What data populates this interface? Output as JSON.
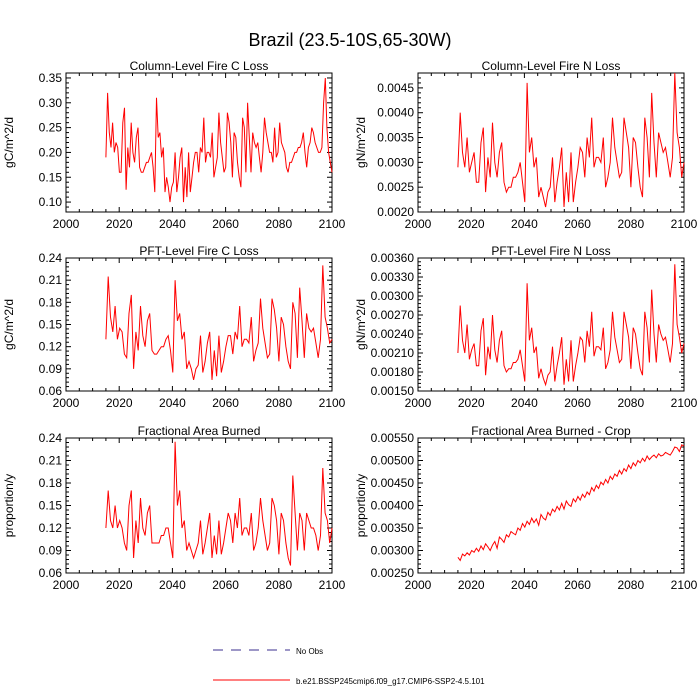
{
  "figure": {
    "title": "Brazil (23.5-10S,65-30W)"
  },
  "legend": {
    "obs_label": "No Obs",
    "model_label": "b.e21.BSSP245cmip6.f09_g17.CMIP6-SSP2-4.5.101",
    "obs_color": "#3b2f8f",
    "model_color": "#ff0000"
  },
  "chart_data": [
    {
      "type": "line",
      "title": "Column-Level Fire C Loss",
      "ylabel": "gC/m^2/d",
      "xlabel": "",
      "xlim": [
        2000,
        2100
      ],
      "ylim": [
        0.08,
        0.36
      ],
      "xticks": [
        "2000",
        "2020",
        "2040",
        "2060",
        "2080",
        "2100"
      ],
      "yticks": [
        "0.10",
        "0.15",
        "0.20",
        "0.25",
        "0.30",
        "0.35"
      ],
      "series": [
        {
          "name": "b.e21.BSSP245cmip6.f09_g17.CMIP6-SSP2-4.5.101",
          "start_year": 2015,
          "values": [
            0.19,
            0.32,
            0.24,
            0.21,
            0.26,
            0.2,
            0.22,
            0.21,
            0.16,
            0.16,
            0.26,
            0.29,
            0.125,
            0.21,
            0.17,
            0.26,
            0.2,
            0.18,
            0.23,
            0.25,
            0.17,
            0.16,
            0.16,
            0.17,
            0.18,
            0.18,
            0.19,
            0.2,
            0.17,
            0.12,
            0.31,
            0.23,
            0.24,
            0.19,
            0.21,
            0.12,
            0.15,
            0.13,
            0.1,
            0.13,
            0.14,
            0.2,
            0.12,
            0.15,
            0.19,
            0.21,
            0.1,
            0.17,
            0.11,
            0.2,
            0.12,
            0.15,
            0.18,
            0.2,
            0.2,
            0.16,
            0.21,
            0.2,
            0.27,
            0.18,
            0.2,
            0.2,
            0.19,
            0.24,
            0.15,
            0.17,
            0.19,
            0.28,
            0.22,
            0.19,
            0.16,
            0.17,
            0.28,
            0.26,
            0.22,
            0.15,
            0.24,
            0.23,
            0.18,
            0.15,
            0.13,
            0.27,
            0.25,
            0.16,
            0.3,
            0.23,
            0.16,
            0.24,
            0.22,
            0.21,
            0.22,
            0.19,
            0.16,
            0.2,
            0.27,
            0.24,
            0.22,
            0.2,
            0.2,
            0.18,
            0.25,
            0.19,
            0.2,
            0.26,
            0.22,
            0.21,
            0.2,
            0.17,
            0.16,
            0.18,
            0.18,
            0.19,
            0.2,
            0.2,
            0.21,
            0.21,
            0.22,
            0.24,
            0.2,
            0.17,
            0.21,
            0.22,
            0.25,
            0.24,
            0.22,
            0.21,
            0.2,
            0.2,
            0.21,
            0.3,
            0.35,
            0.25,
            0.2,
            0.18,
            0.16
          ]
        }
      ]
    },
    {
      "type": "line",
      "title": "Column-Level Fire N Loss",
      "ylabel": "gN/m^2/d",
      "xlabel": "",
      "xlim": [
        2000,
        2100
      ],
      "ylim": [
        0.002,
        0.0048
      ],
      "xticks": [
        "2000",
        "2020",
        "2040",
        "2060",
        "2080",
        "2100"
      ],
      "yticks": [
        "0.0020",
        "0.0025",
        "0.0030",
        "0.0035",
        "0.0040",
        "0.0045"
      ],
      "series": [
        {
          "name": "b.e21.BSSP245cmip6.f09_g17.CMIP6-SSP2-4.5.101",
          "start_year": 2015,
          "values": [
            0.0029,
            0.004,
            0.0032,
            0.0029,
            0.0035,
            0.0028,
            0.003,
            0.0032,
            0.0026,
            0.0026,
            0.0034,
            0.0037,
            0.0024,
            0.0031,
            0.0027,
            0.0038,
            0.003,
            0.0027,
            0.0032,
            0.0034,
            0.0026,
            0.0024,
            0.0025,
            0.0025,
            0.0027,
            0.0027,
            0.0028,
            0.003,
            0.0026,
            0.0022,
            0.0046,
            0.0032,
            0.0035,
            0.0029,
            0.0031,
            0.0023,
            0.0025,
            0.0023,
            0.0021,
            0.0024,
            0.0025,
            0.0031,
            0.0022,
            0.0026,
            0.0029,
            0.0033,
            0.0021,
            0.0028,
            0.0022,
            0.0032,
            0.0022,
            0.0026,
            0.0029,
            0.0033,
            0.0032,
            0.0027,
            0.0035,
            0.0031,
            0.0039,
            0.0029,
            0.0031,
            0.0031,
            0.003,
            0.0035,
            0.0025,
            0.0027,
            0.003,
            0.0039,
            0.0033,
            0.003,
            0.0027,
            0.0028,
            0.0039,
            0.0036,
            0.0033,
            0.0025,
            0.0035,
            0.0034,
            0.0029,
            0.0025,
            0.0023,
            0.0039,
            0.0035,
            0.0027,
            0.0044,
            0.0034,
            0.0027,
            0.0036,
            0.0034,
            0.0032,
            0.0033,
            0.003,
            0.0027,
            0.0031,
            0.0048,
            0.0036,
            0.0033,
            0.0027,
            0.003
          ]
        }
      ]
    },
    {
      "type": "line",
      "title": "PFT-Level Fire C Loss",
      "ylabel": "gC/m^2/d",
      "xlabel": "",
      "xlim": [
        2000,
        2100
      ],
      "ylim": [
        0.06,
        0.24
      ],
      "xticks": [
        "2000",
        "2020",
        "2040",
        "2060",
        "2080",
        "2100"
      ],
      "yticks": [
        "0.06",
        "0.09",
        "0.12",
        "0.15",
        "0.18",
        "0.21",
        "0.24"
      ],
      "series": [
        {
          "name": "b.e21.BSSP245cmip6.f09_g17.CMIP6-SSP2-4.5.101",
          "start_year": 2015,
          "values": [
            0.13,
            0.215,
            0.16,
            0.14,
            0.175,
            0.13,
            0.145,
            0.14,
            0.11,
            0.105,
            0.165,
            0.19,
            0.09,
            0.14,
            0.115,
            0.175,
            0.135,
            0.12,
            0.155,
            0.165,
            0.115,
            0.11,
            0.11,
            0.115,
            0.12,
            0.12,
            0.13,
            0.135,
            0.115,
            0.085,
            0.21,
            0.155,
            0.165,
            0.13,
            0.14,
            0.09,
            0.1,
            0.09,
            0.075,
            0.09,
            0.095,
            0.135,
            0.085,
            0.1,
            0.125,
            0.14,
            0.075,
            0.115,
            0.08,
            0.135,
            0.085,
            0.1,
            0.12,
            0.135,
            0.135,
            0.11,
            0.14,
            0.13,
            0.175,
            0.12,
            0.13,
            0.13,
            0.125,
            0.16,
            0.1,
            0.115,
            0.125,
            0.185,
            0.145,
            0.125,
            0.105,
            0.11,
            0.185,
            0.17,
            0.145,
            0.1,
            0.16,
            0.15,
            0.12,
            0.1,
            0.09,
            0.18,
            0.165,
            0.105,
            0.2,
            0.155,
            0.105,
            0.165,
            0.145,
            0.14,
            0.145,
            0.125,
            0.105,
            0.13,
            0.23,
            0.16,
            0.145,
            0.125,
            0.13
          ]
        }
      ]
    },
    {
      "type": "line",
      "title": "PFT-Level Fire N Loss",
      "ylabel": "gN/m^2/d",
      "xlabel": "",
      "xlim": [
        2000,
        2100
      ],
      "ylim": [
        0.0015,
        0.0036
      ],
      "xticks": [
        "2000",
        "2020",
        "2040",
        "2060",
        "2080",
        "2100"
      ],
      "yticks": [
        "0.00150",
        "0.00180",
        "0.00210",
        "0.00240",
        "0.00270",
        "0.00300",
        "0.00330",
        "0.00360"
      ],
      "series": [
        {
          "name": "b.e21.BSSP245cmip6.f09_g17.CMIP6-SSP2-4.5.101",
          "start_year": 2015,
          "values": [
            0.0021,
            0.00285,
            0.0023,
            0.0021,
            0.00255,
            0.002,
            0.00215,
            0.00225,
            0.0019,
            0.0019,
            0.00245,
            0.00265,
            0.00175,
            0.0022,
            0.002,
            0.0027,
            0.00215,
            0.00195,
            0.0023,
            0.00245,
            0.0019,
            0.0018,
            0.00185,
            0.00185,
            0.00195,
            0.00195,
            0.002,
            0.00215,
            0.0019,
            0.00165,
            0.0032,
            0.0023,
            0.0025,
            0.0021,
            0.0022,
            0.0017,
            0.00185,
            0.0017,
            0.0016,
            0.00175,
            0.0018,
            0.0022,
            0.00165,
            0.0019,
            0.0021,
            0.00235,
            0.0016,
            0.002,
            0.00165,
            0.0023,
            0.00165,
            0.0019,
            0.0021,
            0.00235,
            0.0023,
            0.00195,
            0.00245,
            0.0022,
            0.00275,
            0.00205,
            0.0022,
            0.0022,
            0.00215,
            0.0025,
            0.00185,
            0.00195,
            0.00215,
            0.00275,
            0.00235,
            0.00215,
            0.00195,
            0.002,
            0.00275,
            0.00255,
            0.00235,
            0.00185,
            0.0025,
            0.0024,
            0.0021,
            0.00185,
            0.00175,
            0.00275,
            0.0025,
            0.00195,
            0.0031,
            0.0024,
            0.00195,
            0.00255,
            0.0024,
            0.0023,
            0.00235,
            0.00215,
            0.00195,
            0.00225,
            0.0035,
            0.00255,
            0.00235,
            0.0021,
            0.00225
          ]
        }
      ]
    },
    {
      "type": "line",
      "title": "Fractional Area Burned",
      "ylabel": "proportion/y",
      "xlabel": "",
      "xlim": [
        2000,
        2100
      ],
      "ylim": [
        0.06,
        0.24
      ],
      "xticks": [
        "2000",
        "2020",
        "2040",
        "2060",
        "2080",
        "2100"
      ],
      "yticks": [
        "0.06",
        "0.09",
        "0.12",
        "0.15",
        "0.18",
        "0.21",
        "0.24"
      ],
      "series": [
        {
          "name": "b.e21.BSSP245cmip6.f09_g17.CMIP6-SSP2-4.5.101",
          "start_year": 2015,
          "values": [
            0.12,
            0.17,
            0.13,
            0.12,
            0.15,
            0.12,
            0.13,
            0.12,
            0.1,
            0.09,
            0.15,
            0.17,
            0.08,
            0.13,
            0.1,
            0.16,
            0.12,
            0.11,
            0.14,
            0.15,
            0.1,
            0.1,
            0.1,
            0.1,
            0.11,
            0.11,
            0.12,
            0.12,
            0.1,
            0.08,
            0.235,
            0.15,
            0.17,
            0.12,
            0.13,
            0.09,
            0.1,
            0.09,
            0.08,
            0.09,
            0.1,
            0.13,
            0.085,
            0.1,
            0.12,
            0.14,
            0.08,
            0.11,
            0.085,
            0.13,
            0.085,
            0.1,
            0.12,
            0.14,
            0.13,
            0.1,
            0.14,
            0.12,
            0.16,
            0.11,
            0.12,
            0.12,
            0.11,
            0.14,
            0.09,
            0.1,
            0.12,
            0.16,
            0.13,
            0.11,
            0.09,
            0.1,
            0.16,
            0.15,
            0.13,
            0.085,
            0.14,
            0.13,
            0.1,
            0.08,
            0.07,
            0.19,
            0.14,
            0.09,
            0.14,
            0.13,
            0.09,
            0.14,
            0.13,
            0.12,
            0.12,
            0.11,
            0.09,
            0.11,
            0.2,
            0.14,
            0.13,
            0.1,
            0.12
          ]
        }
      ]
    },
    {
      "type": "line",
      "title": "Fractional Area Burned - Crop",
      "ylabel": "proportion/y",
      "xlabel": "",
      "xlim": [
        2000,
        2100
      ],
      "ylim": [
        0.0025,
        0.0055
      ],
      "xticks": [
        "2000",
        "2020",
        "2040",
        "2060",
        "2080",
        "2100"
      ],
      "yticks": [
        "0.00250",
        "0.00300",
        "0.00350",
        "0.00400",
        "0.00450",
        "0.00500",
        "0.00550"
      ],
      "series": [
        {
          "name": "b.e21.BSSP245cmip6.f09_g17.CMIP6-SSP2-4.5.101",
          "start_year": 2015,
          "values": [
            0.00285,
            0.00278,
            0.00292,
            0.00288,
            0.00295,
            0.0029,
            0.003,
            0.00296,
            0.00305,
            0.00298,
            0.0031,
            0.00302,
            0.00315,
            0.00308,
            0.003,
            0.00312,
            0.0032,
            0.00305,
            0.0033,
            0.00325,
            0.00318,
            0.00335,
            0.0033,
            0.00342,
            0.00338,
            0.00335,
            0.0035,
            0.00345,
            0.0036,
            0.00352,
            0.00365,
            0.00358,
            0.00372,
            0.00362,
            0.0037,
            0.00356,
            0.0038,
            0.00372,
            0.00368,
            0.00385,
            0.00378,
            0.00392,
            0.00386,
            0.00398,
            0.0039,
            0.00405,
            0.00392,
            0.0041,
            0.00402,
            0.00398,
            0.00415,
            0.00408,
            0.0042,
            0.00412,
            0.00425,
            0.00418,
            0.0043,
            0.00424,
            0.0044,
            0.00432,
            0.00445,
            0.00438,
            0.00452,
            0.00446,
            0.00458,
            0.0045,
            0.00465,
            0.00458,
            0.0047,
            0.00465,
            0.00478,
            0.0047,
            0.00482,
            0.00476,
            0.0049,
            0.00482,
            0.00495,
            0.00488,
            0.005,
            0.00495,
            0.00505,
            0.00498,
            0.0051,
            0.00502,
            0.00508,
            0.00512,
            0.00506,
            0.00515,
            0.0051,
            0.00512,
            0.00518,
            0.00515,
            0.00512,
            0.0052,
            0.0053,
            0.00528,
            0.0052,
            0.00535,
            0.00532
          ]
        }
      ]
    }
  ]
}
